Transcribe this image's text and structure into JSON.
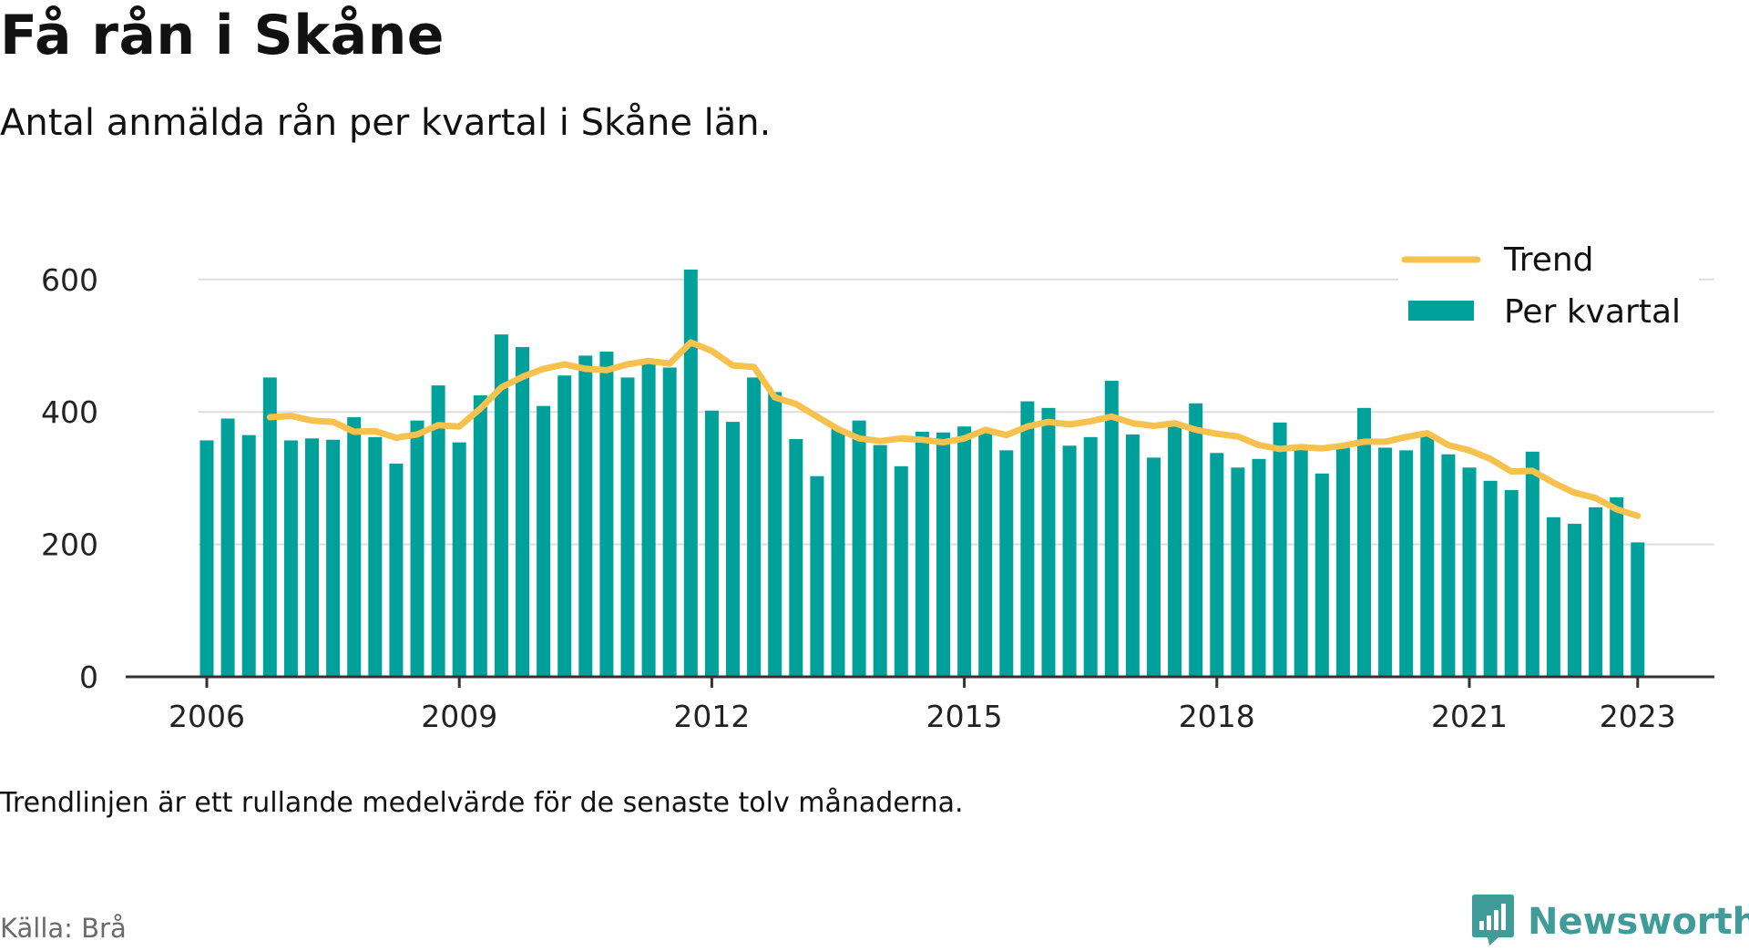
{
  "title": "Få rån i Skåne",
  "subtitle": "Antal anmälda rån per kvartal i Skåne län.",
  "note": "Trendlinjen är ett rullande medelvärde för de senaste tolv månaderna.",
  "source": "Källa: Brå",
  "brand": {
    "name": "Newsworthy",
    "icon": "newsworthy-logo-icon",
    "color": "#3f9c99"
  },
  "colors": {
    "bars": "#00a19a",
    "trend": "#f7c14d",
    "grid": "#dddddd",
    "axis": "#333333"
  },
  "chart_data": {
    "type": "bar",
    "x_start": "2006 Q1",
    "y_ticks": [
      "0",
      "200",
      "400",
      "600"
    ],
    "x_ticks": [
      "2006",
      "2009",
      "2012",
      "2015",
      "2018",
      "2021",
      "2023"
    ],
    "ylim": [
      0,
      660
    ],
    "grid": true,
    "legend_position": "top-right",
    "series": [
      {
        "name": "Per kvartal",
        "type": "bar",
        "values": [
          357,
          390,
          365,
          452,
          357,
          360,
          358,
          392,
          362,
          322,
          387,
          440,
          354,
          425,
          517,
          498,
          409,
          455,
          485,
          491,
          452,
          475,
          467,
          615,
          402,
          385,
          452,
          430,
          359,
          303,
          375,
          387,
          350,
          318,
          370,
          369,
          378,
          373,
          342,
          416,
          406,
          349,
          362,
          447,
          366,
          331,
          385,
          413,
          338,
          316,
          329,
          384,
          346,
          307,
          346,
          406,
          346,
          342,
          363,
          336,
          316,
          296,
          282,
          340,
          241,
          231,
          256,
          271,
          203
        ]
      },
      {
        "name": "Trend",
        "type": "line",
        "start_index": 3,
        "values": [
          392,
          394,
          387,
          385,
          370,
          371,
          361,
          366,
          380,
          378,
          405,
          437,
          453,
          465,
          472,
          465,
          463,
          472,
          477,
          473,
          505,
          492,
          470,
          468,
          422,
          412,
          393,
          374,
          360,
          356,
          360,
          358,
          354,
          360,
          373,
          365,
          378,
          385,
          381,
          386,
          393,
          383,
          379,
          383,
          373,
          367,
          363,
          350,
          344,
          347,
          345,
          349,
          355,
          355,
          362,
          368,
          350,
          342,
          329,
          310,
          311,
          293,
          278,
          270,
          253,
          243
        ]
      }
    ]
  }
}
